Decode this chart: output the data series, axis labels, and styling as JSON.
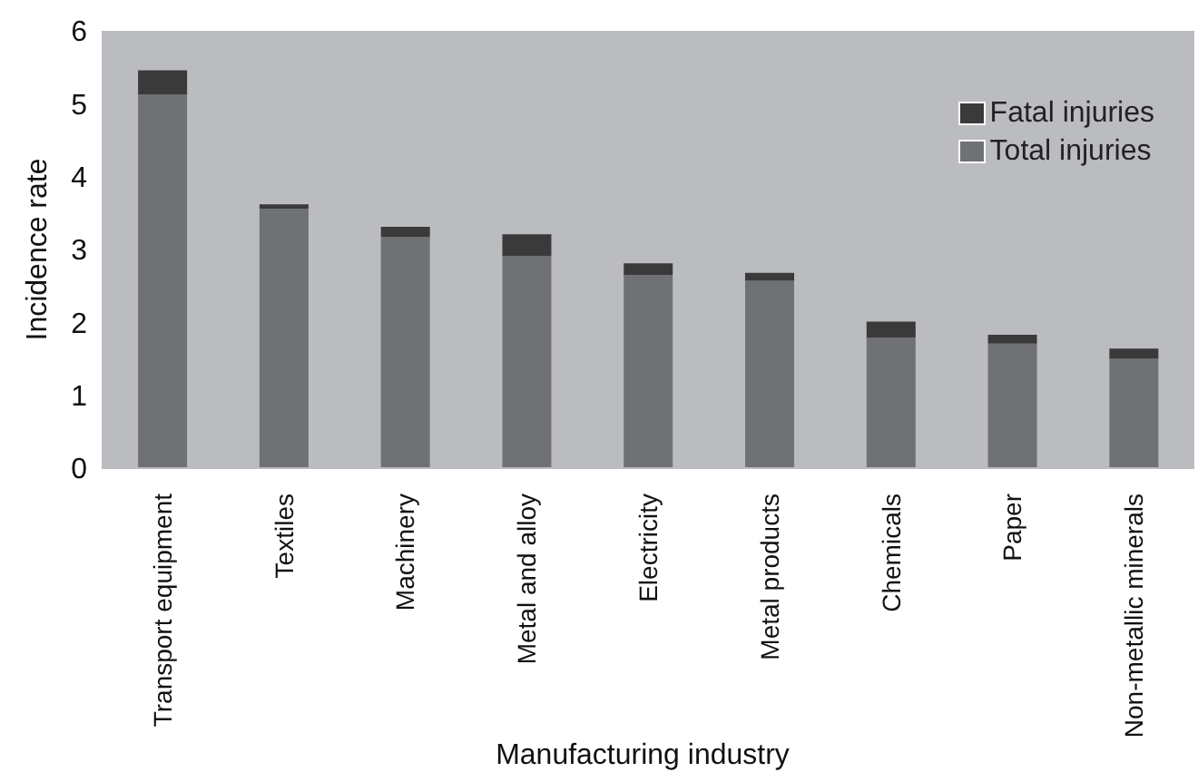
{
  "chart_data": {
    "type": "bar",
    "stacked": true,
    "xlabel": "Manufacturing industry",
    "ylabel": "Incidence rate",
    "categories": [
      "Transport equipment",
      "Textiles",
      "Machinery",
      "Metal and alloy",
      "Electricity",
      "Metal products",
      "Chemicals",
      "Paper",
      "Non-metallic minerals"
    ],
    "series": [
      {
        "name": "Total injuries",
        "color": "#707174",
        "values": [
          5.13,
          3.56,
          3.17,
          2.91,
          2.65,
          2.57,
          1.79,
          1.71,
          1.5
        ]
      },
      {
        "name": "Fatal injuries",
        "color": "#3a3a3a",
        "values": [
          0.33,
          0.06,
          0.14,
          0.3,
          0.16,
          0.11,
          0.22,
          0.12,
          0.14
        ]
      }
    ],
    "ylim": [
      0,
      6
    ],
    "yticks": [
      0,
      1,
      2,
      3,
      4,
      5,
      6
    ],
    "grid": false,
    "legend": "top right"
  }
}
